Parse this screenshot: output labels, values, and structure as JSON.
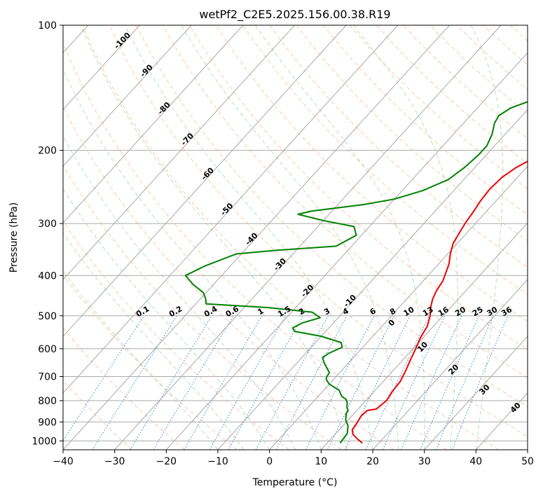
{
  "chart_data": {
    "type": "line",
    "title": "wetPf2_C2E5.2025.156.00.38.R19",
    "xlabel": "Temperature (°C)",
    "ylabel": "Pressure (hPa)",
    "xlim": [
      -40,
      50
    ],
    "ylim": [
      1050,
      100
    ],
    "y_scale": "log",
    "grid": true,
    "x_ticks": [
      "−40",
      "−30",
      "−20",
      "−10",
      "0",
      "10",
      "20",
      "30",
      "40",
      "50"
    ],
    "y_ticks": [
      "100",
      "200",
      "300",
      "400",
      "500",
      "600",
      "700",
      "800",
      "900",
      "1000"
    ],
    "y_tick_values": [
      100,
      200,
      300,
      400,
      500,
      600,
      700,
      800,
      900,
      1000
    ],
    "series": [
      {
        "color": "#ee0000",
        "points": [
          [
            16.8,
            1012
          ],
          [
            15.2,
            990
          ],
          [
            13.5,
            965
          ],
          [
            12.5,
            940
          ],
          [
            12.2,
            905
          ],
          [
            11.8,
            870
          ],
          [
            12.0,
            845
          ],
          [
            13.5,
            838
          ],
          [
            14.0,
            800
          ],
          [
            13.5,
            760
          ],
          [
            13.3,
            720
          ],
          [
            12.5,
            680
          ],
          [
            11.5,
            640
          ],
          [
            10.5,
            600
          ],
          [
            9.5,
            565
          ],
          [
            8.8,
            530
          ],
          [
            7.5,
            500
          ],
          [
            6.0,
            475
          ],
          [
            5.0,
            455
          ],
          [
            4.3,
            435
          ],
          [
            3.8,
            412
          ],
          [
            3.0,
            395
          ],
          [
            2.0,
            375
          ],
          [
            0.5,
            355
          ],
          [
            -0.8,
            335
          ],
          [
            -1.5,
            315
          ],
          [
            -2.0,
            300
          ],
          [
            -2.5,
            280
          ],
          [
            -3.0,
            265
          ],
          [
            -3.3,
            248
          ],
          [
            -3.0,
            232
          ],
          [
            -2.0,
            220
          ],
          [
            0.0,
            207
          ],
          [
            2.5,
            195
          ],
          [
            5.0,
            184
          ],
          [
            7.5,
            174
          ],
          [
            10.0,
            163
          ],
          [
            11.5,
            152
          ],
          [
            12.5,
            143
          ],
          [
            13.0,
            134
          ],
          [
            13.8,
            127
          ],
          [
            14.5,
            120
          ],
          [
            15.8,
            113
          ],
          [
            17.2,
            106
          ],
          [
            19.0,
            100
          ]
        ]
      },
      {
        "color": "#008000",
        "points": [
          [
            12.5,
            1012
          ],
          [
            12.2,
            960
          ],
          [
            11.0,
            920
          ],
          [
            9.5,
            890
          ],
          [
            8.5,
            860
          ],
          [
            8.3,
            845
          ],
          [
            7.5,
            830
          ],
          [
            6.8,
            810
          ],
          [
            6.0,
            795
          ],
          [
            4.5,
            780
          ],
          [
            3.0,
            755
          ],
          [
            0.0,
            730
          ],
          [
            -1.5,
            710
          ],
          [
            -1.8,
            700
          ],
          [
            -2.0,
            685
          ],
          [
            -3.5,
            665
          ],
          [
            -5.0,
            645
          ],
          [
            -6.0,
            630
          ],
          [
            -5.5,
            615
          ],
          [
            -4.0,
            595
          ],
          [
            -5.0,
            580
          ],
          [
            -10.0,
            560
          ],
          [
            -16.0,
            545
          ],
          [
            -17.0,
            535
          ],
          [
            -16.0,
            520
          ],
          [
            -13.5,
            505
          ],
          [
            -16.0,
            490
          ],
          [
            -25.0,
            478
          ],
          [
            -38.0,
            468
          ],
          [
            -39.0,
            455
          ],
          [
            -40.5,
            440
          ],
          [
            -44.0,
            420
          ],
          [
            -47.0,
            400
          ],
          [
            -45.0,
            380
          ],
          [
            -41.0,
            355
          ],
          [
            -34.0,
            348
          ],
          [
            -23.0,
            340
          ],
          [
            -21.0,
            320
          ],
          [
            -23.0,
            305
          ],
          [
            -30.0,
            295
          ],
          [
            -36.0,
            285
          ],
          [
            -34.0,
            280
          ],
          [
            -25.0,
            270
          ],
          [
            -20.0,
            262
          ],
          [
            -16.0,
            250
          ],
          [
            -13.0,
            235
          ],
          [
            -12.0,
            220
          ],
          [
            -11.5,
            205
          ],
          [
            -11.5,
            195
          ],
          [
            -12.5,
            183
          ],
          [
            -14.0,
            172
          ],
          [
            -14.5,
            165
          ],
          [
            -13.5,
            158
          ],
          [
            -11.0,
            152
          ],
          [
            -8.5,
            147
          ],
          [
            -7.0,
            140
          ],
          [
            -6.0,
            133
          ],
          [
            -5.0,
            125
          ],
          [
            -4.0,
            118
          ],
          [
            -2.0,
            110
          ],
          [
            0.0,
            103
          ],
          [
            1.0,
            100
          ]
        ]
      }
    ],
    "isotherm_labels": [
      "-100",
      "-90",
      "-80",
      "-70",
      "-60",
      "-50",
      "-40",
      "-30",
      "-20",
      "-10"
    ],
    "mixing_ratio_labels": [
      "0.1",
      "0.2",
      "0.4",
      "0.6",
      "1",
      "1.5",
      "2",
      "3",
      "4",
      "6",
      "8",
      "10",
      "13",
      "16",
      "20",
      "25",
      "30",
      "36"
    ],
    "extra_labels": [
      "0",
      "10",
      "20",
      "30",
      "40"
    ]
  }
}
